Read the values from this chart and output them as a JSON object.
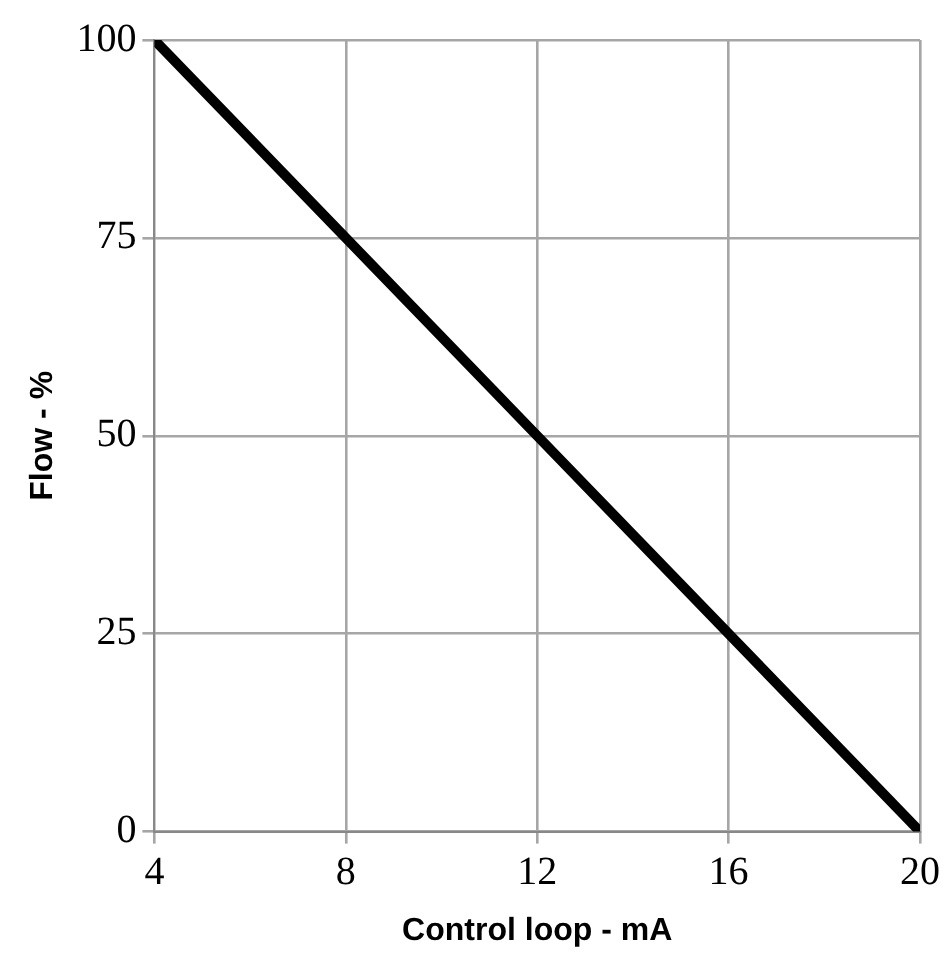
{
  "chart_data": {
    "type": "line",
    "xlabel": "Control loop - mA",
    "ylabel": "Flow - %",
    "x": [
      4,
      20
    ],
    "series": [
      {
        "color": "#000000",
        "values": [
          100,
          0
        ]
      }
    ],
    "xlim": [
      4,
      20
    ],
    "xticks": [
      4,
      8,
      12,
      16,
      20
    ],
    "ylim": [
      0,
      100
    ],
    "yticks": [
      0,
      25,
      50,
      75,
      100
    ],
    "grid": true,
    "legend": false,
    "marker": "none",
    "line_style": "solid"
  }
}
